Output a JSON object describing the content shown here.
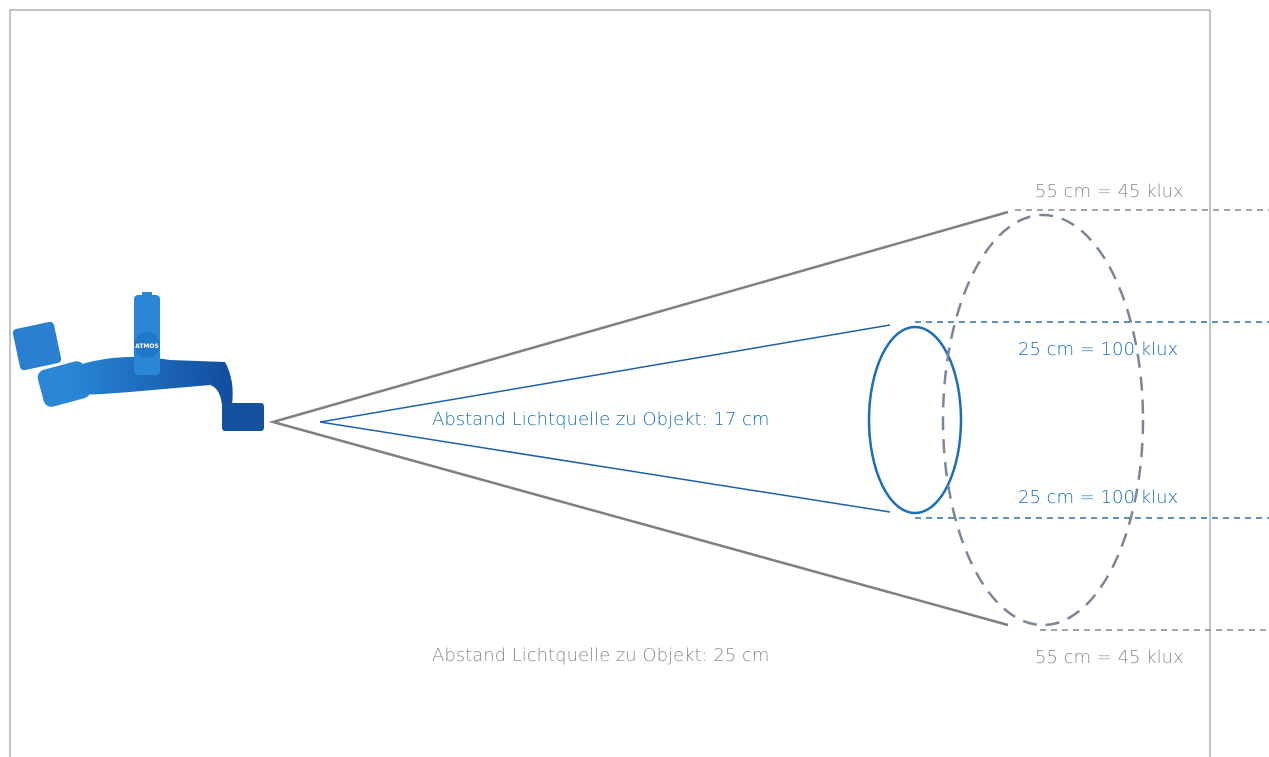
{
  "lamp": {
    "logo": "ATMOS"
  },
  "labels": {
    "outer_top": "55 cm = 45 klux",
    "inner_top": "25 cm = 100 klux",
    "inner_distance": "Abstand Lichtquelle zu Objekt: 17 cm",
    "inner_bottom": "25 cm = 100 klux",
    "outer_distance": "Abstand Lichtquelle zu Objekt: 25 cm",
    "outer_bottom": "55 cm = 45 klux"
  }
}
